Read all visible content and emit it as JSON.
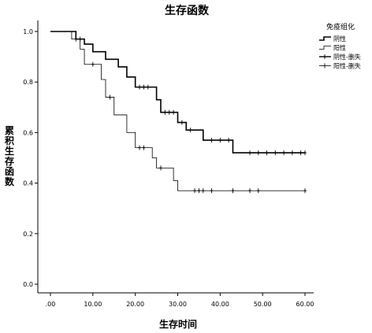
{
  "chart_data": {
    "type": "line",
    "title": "生存函数",
    "xlabel": "生存时间",
    "ylabel": "累积生存函数",
    "xlim": [
      0,
      60
    ],
    "ylim": [
      0,
      1
    ],
    "x_ticks": [
      0,
      10,
      20,
      30,
      40,
      50,
      60
    ],
    "x_tick_labels": [
      ".00",
      "10.00",
      "20.00",
      "30.00",
      "40.00",
      "50.00",
      "60.00"
    ],
    "y_ticks": [
      0,
      0.2,
      0.4,
      0.6,
      0.8,
      1.0
    ],
    "y_tick_labels": [
      "0.0",
      "0.2",
      "0.4",
      "0.6",
      "0.8",
      "1.0"
    ],
    "legend_title": "免疫组化",
    "legend_position": "top-right",
    "legend": [
      "阴性",
      "阳性",
      "阴性-删失",
      "阳性-删失"
    ],
    "series": [
      {
        "name": "阴性",
        "style": "solid-thick",
        "steps": [
          [
            0,
            1.0
          ],
          [
            6,
            0.97
          ],
          [
            8,
            0.95
          ],
          [
            10,
            0.92
          ],
          [
            13,
            0.89
          ],
          [
            16,
            0.86
          ],
          [
            18,
            0.82
          ],
          [
            20,
            0.78
          ],
          [
            25,
            0.73
          ],
          [
            26,
            0.68
          ],
          [
            30,
            0.64
          ],
          [
            32,
            0.61
          ],
          [
            36,
            0.57
          ],
          [
            43,
            0.52
          ],
          [
            60,
            0.52
          ]
        ],
        "censored": [
          [
            7,
            0.97
          ],
          [
            21,
            0.78
          ],
          [
            22,
            0.78
          ],
          [
            23,
            0.78
          ],
          [
            27,
            0.68
          ],
          [
            28,
            0.68
          ],
          [
            29,
            0.68
          ],
          [
            31,
            0.64
          ],
          [
            33,
            0.61
          ],
          [
            38,
            0.57
          ],
          [
            40,
            0.57
          ],
          [
            42,
            0.57
          ],
          [
            47,
            0.52
          ],
          [
            49,
            0.52
          ],
          [
            51,
            0.52
          ],
          [
            53,
            0.52
          ],
          [
            55,
            0.52
          ],
          [
            57,
            0.52
          ],
          [
            59,
            0.52
          ],
          [
            60,
            0.52
          ]
        ]
      },
      {
        "name": "阳性",
        "style": "solid-thin",
        "steps": [
          [
            0,
            1.0
          ],
          [
            5,
            0.97
          ],
          [
            7,
            0.93
          ],
          [
            8,
            0.87
          ],
          [
            12,
            0.81
          ],
          [
            13,
            0.74
          ],
          [
            15,
            0.67
          ],
          [
            18,
            0.6
          ],
          [
            20,
            0.54
          ],
          [
            24,
            0.5
          ],
          [
            25,
            0.46
          ],
          [
            29,
            0.41
          ],
          [
            30,
            0.37
          ],
          [
            60,
            0.37
          ]
        ],
        "censored": [
          [
            6,
            0.97
          ],
          [
            10,
            0.87
          ],
          [
            14,
            0.74
          ],
          [
            21,
            0.54
          ],
          [
            22,
            0.54
          ],
          [
            26,
            0.46
          ],
          [
            34,
            0.37
          ],
          [
            35,
            0.37
          ],
          [
            36,
            0.37
          ],
          [
            38,
            0.37
          ],
          [
            43,
            0.37
          ],
          [
            47,
            0.37
          ],
          [
            49,
            0.37
          ],
          [
            60,
            0.37
          ]
        ]
      }
    ]
  }
}
